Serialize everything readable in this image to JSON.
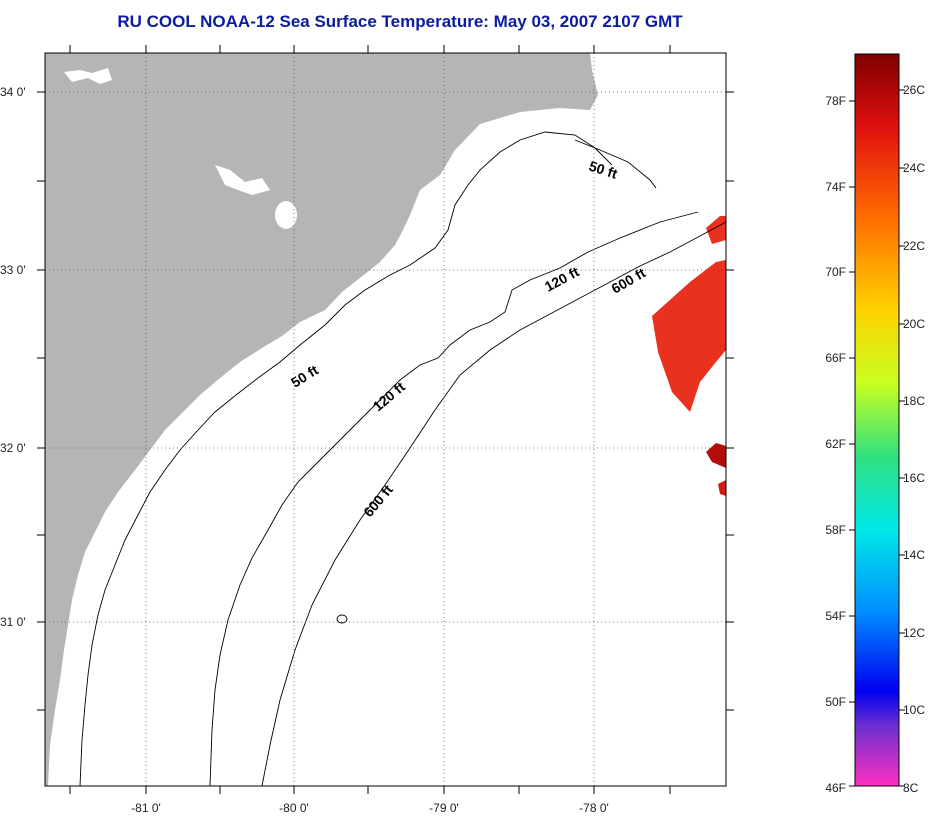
{
  "title": "RU COOL  NOAA-12  Sea Surface Temperature:  May 03, 2007 2107 GMT",
  "map": {
    "lat_labels": [
      "34 0'",
      "33 0'",
      "32 0'",
      "31 0'"
    ],
    "lon_labels": [
      "-81 0'",
      "-80 0'",
      "-79 0'",
      "-78 0'"
    ],
    "depth_contours": {
      "c50": "50 ft",
      "c120": "120 ft",
      "c600": "600 ft"
    }
  },
  "colorbar": {
    "fahrenheit_labels": [
      "78F",
      "74F",
      "70F",
      "66F",
      "62F",
      "58F",
      "54F",
      "50F",
      "46F"
    ],
    "celsius_labels": [
      "26C",
      "24C",
      "22C",
      "20C",
      "18C",
      "16C",
      "14C",
      "12C",
      "10C",
      "8C"
    ]
  },
  "colors": {
    "title": "#0b1c9e",
    "land": "#b5b5b5",
    "sst_warm": "#e8321e",
    "sst_hot": "#b40b0b"
  }
}
